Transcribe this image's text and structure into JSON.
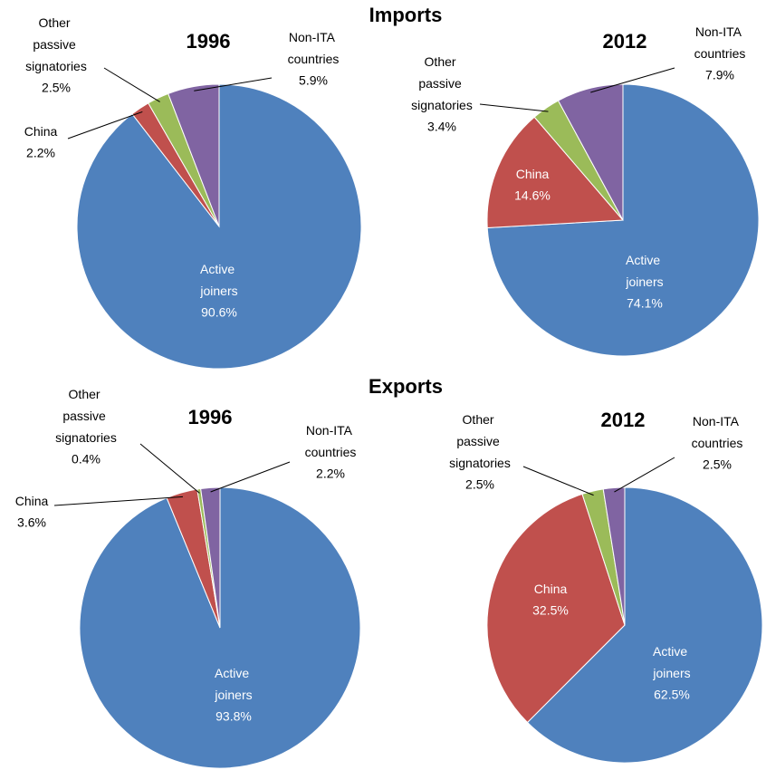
{
  "headings": [
    "Imports",
    "Exports"
  ],
  "chart_data": [
    {
      "type": "pie",
      "title": "1996",
      "categories": [
        "Active joiners",
        "China",
        "Other passive signatories",
        "Non-ITA countries"
      ],
      "values": [
        90.6,
        2.2,
        2.5,
        5.9
      ],
      "value_labels": [
        "90.6%",
        "2.2%",
        "2.5%",
        "5.9%"
      ],
      "colors": [
        "#4f81bd",
        "#c0504d",
        "#9bbb59",
        "#8064a2"
      ]
    },
    {
      "type": "pie",
      "title": "2012",
      "categories": [
        "Active joiners",
        "China",
        "Other passive signatories",
        "Non-ITA countries"
      ],
      "values": [
        74.1,
        14.6,
        3.4,
        7.9
      ],
      "value_labels": [
        "74.1%",
        "14.6%",
        "3.4%",
        "7.9%"
      ],
      "colors": [
        "#4f81bd",
        "#c0504d",
        "#9bbb59",
        "#8064a2"
      ]
    },
    {
      "type": "pie",
      "title": "1996",
      "categories": [
        "Active joiners",
        "China",
        "Other passive signatories",
        "Non-ITA countries"
      ],
      "values": [
        93.8,
        3.6,
        0.4,
        2.2
      ],
      "value_labels": [
        "93.8%",
        "3.6%",
        "0.4%",
        "2.2%"
      ],
      "colors": [
        "#4f81bd",
        "#c0504d",
        "#9bbb59",
        "#8064a2"
      ]
    },
    {
      "type": "pie",
      "title": "2012",
      "categories": [
        "Active joiners",
        "China",
        "Other passive signatories",
        "Non-ITA countries"
      ],
      "values": [
        62.5,
        32.5,
        2.5,
        2.5
      ],
      "value_labels": [
        "62.5%",
        "32.5%",
        "2.5%",
        "2.5%"
      ],
      "colors": [
        "#4f81bd",
        "#c0504d",
        "#9bbb59",
        "#8064a2"
      ]
    }
  ]
}
